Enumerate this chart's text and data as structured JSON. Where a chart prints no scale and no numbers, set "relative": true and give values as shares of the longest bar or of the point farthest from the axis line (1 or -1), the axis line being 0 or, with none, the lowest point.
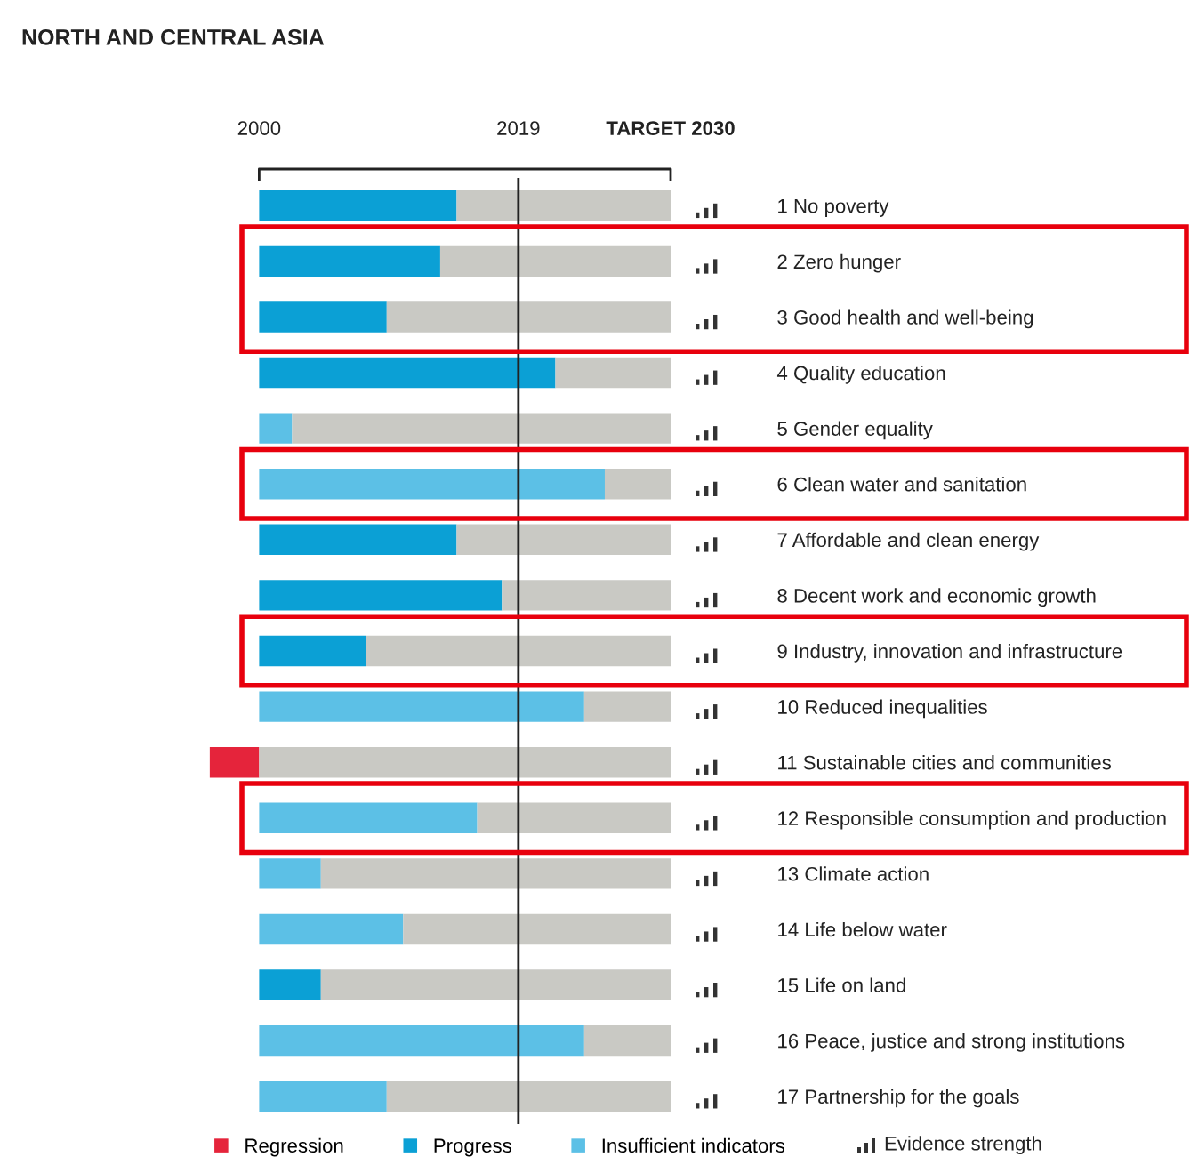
{
  "chart_data": {
    "type": "bar",
    "orientation": "horizontal",
    "stacked": true,
    "relative": true,
    "title": "NORTH AND CENTRAL ASIA",
    "categories": [
      "1 No poverty",
      "2 Zero hunger",
      "3 Good health and well-being",
      "4 Quality education",
      "5 Gender equality",
      "6 Clean water and sanitation",
      "7 Affordable and clean energy",
      "8 Decent work and economic growth",
      "9 Industry, innovation and infrastructure",
      "10 Reduced inequalities",
      "11 Sustainable cities and communities",
      "12 Responsible consumption and production",
      "13 Climate action",
      "14 Life below water",
      "15 Life on land",
      "16 Peace, justice and strong institutions",
      "17 Partnership for the goals"
    ],
    "series": [
      {
        "name": "Regression",
        "color": "#e5243b",
        "values": [
          null,
          null,
          null,
          null,
          null,
          null,
          null,
          null,
          null,
          null,
          -0.12,
          null,
          null,
          null,
          null,
          null,
          null
        ]
      },
      {
        "name": "Progress",
        "color": "#0ba0d5",
        "values": [
          0.48,
          0.44,
          0.31,
          0.72,
          null,
          null,
          0.48,
          0.59,
          0.26,
          null,
          null,
          null,
          null,
          null,
          0.15,
          null,
          null
        ]
      },
      {
        "name": "Insufficient indicators",
        "color": "#5cc0e6",
        "values": [
          null,
          null,
          null,
          null,
          0.08,
          0.84,
          null,
          null,
          null,
          0.79,
          null,
          0.53,
          0.15,
          0.35,
          null,
          0.79,
          0.31
        ]
      },
      {
        "color": "#c9c9c4",
        "values": [
          0.52,
          0.56,
          0.69,
          0.28,
          0.92,
          0.16,
          0.52,
          0.41,
          0.74,
          0.21,
          1,
          0.47,
          0.85,
          0.65,
          0.85,
          0.21,
          0.69
        ]
      }
    ],
    "ref_lines": [
      {
        "axis": "x",
        "value": 0.63,
        "color": "#222222"
      }
    ],
    "annotations": [
      "2000",
      "2019",
      "TARGET 2030",
      "Evidence strength"
    ],
    "legend": "bottom"
  }
}
